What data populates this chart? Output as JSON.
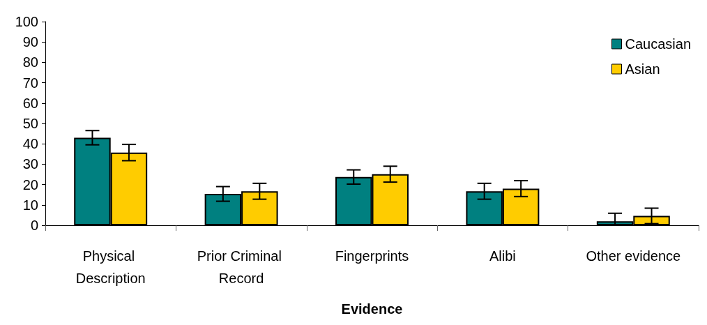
{
  "chart_data": {
    "type": "bar",
    "xlabel": "Evidence",
    "categories": [
      "Physical Description",
      "Prior Criminal Record",
      "Fingerprints",
      "Alibi",
      "Other evidence"
    ],
    "series": [
      {
        "name": "Caucasian",
        "color": "#008080",
        "values": [
          43,
          15.4,
          23.7,
          16.7,
          2
        ],
        "errors": [
          3.5,
          3.6,
          3.5,
          3.9,
          [
            0,
            5.9
          ]
        ]
      },
      {
        "name": "Asian",
        "color": "#ffcc00",
        "values": [
          35.7,
          16.7,
          25.1,
          18,
          4.6
        ],
        "errors": [
          4,
          3.9,
          3.9,
          3.9,
          3.8
        ]
      }
    ],
    "ylim": [
      0,
      100
    ],
    "yticks": [
      0,
      10,
      20,
      30,
      40,
      50,
      60,
      70,
      80,
      90,
      100
    ],
    "grid": false,
    "legend": "top right"
  }
}
